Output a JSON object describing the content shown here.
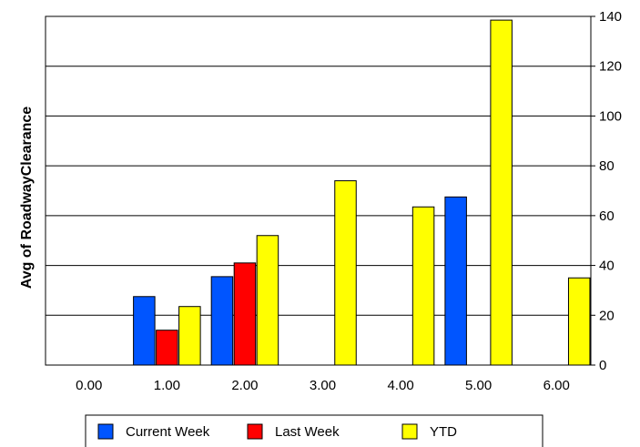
{
  "chart_data": {
    "type": "bar",
    "categories": [
      "0.00",
      "1.00",
      "2.00",
      "3.00",
      "4.00",
      "5.00",
      "6.00"
    ],
    "series": [
      {
        "name": "Current Week",
        "color": "#0055ff",
        "values": [
          0,
          27.5,
          35.5,
          0,
          0,
          67.5,
          0
        ]
      },
      {
        "name": "Last Week",
        "color": "#ff0000",
        "values": [
          0,
          14,
          41,
          0,
          0,
          0,
          0
        ]
      },
      {
        "name": "YTD",
        "color": "#ffff00",
        "values": [
          0,
          23.5,
          52,
          74,
          63.5,
          138.5,
          35
        ]
      }
    ],
    "title": "",
    "xlabel": "",
    "ylabel": "Avg of RoadwayClearance",
    "ylim": [
      0,
      140
    ],
    "yticks": [
      "0",
      "20",
      "40",
      "60",
      "80",
      "100",
      "120",
      "140"
    ],
    "y_axis_side": "right",
    "grid": true,
    "legend_position": "bottom"
  }
}
